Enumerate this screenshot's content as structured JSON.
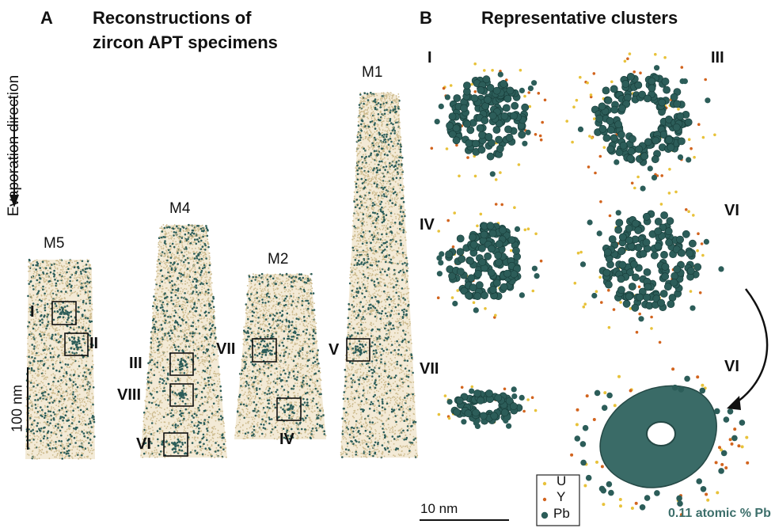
{
  "panel_a": {
    "letter": "A",
    "title_line1": "Reconstructions of",
    "title_line2": "zircon APT specimens",
    "direction_label": "Evaporation direction",
    "scale_label": "100 nm",
    "specimens": [
      {
        "name": "M5",
        "clusters": [
          "I",
          "II"
        ]
      },
      {
        "name": "M4",
        "clusters": [
          "III",
          "VIII",
          "VI"
        ]
      },
      {
        "name": "M2",
        "clusters": [
          "VII",
          "IV"
        ]
      },
      {
        "name": "M1",
        "clusters": [
          "V"
        ]
      }
    ]
  },
  "panel_b": {
    "letter": "B",
    "title": "Representative clusters",
    "clusters": [
      "I",
      "III",
      "IV",
      "VI",
      "VII",
      "VI"
    ],
    "scale_label": "10 nm",
    "isosurface_label": "0.11 atomic % Pb",
    "legend": [
      {
        "label": "U",
        "color": "#e8c23a"
      },
      {
        "label": "Y",
        "color": "#d2641e"
      },
      {
        "label": "Pb",
        "color": "#2c5d59"
      }
    ]
  },
  "colors": {
    "specimen_fill": "#f3ead6",
    "specimen_dot": "#cdbb8e",
    "pb_atom": "#2c5d59",
    "isosurface": "#3a6b67",
    "isosurface_label": "#3d6f6b"
  }
}
